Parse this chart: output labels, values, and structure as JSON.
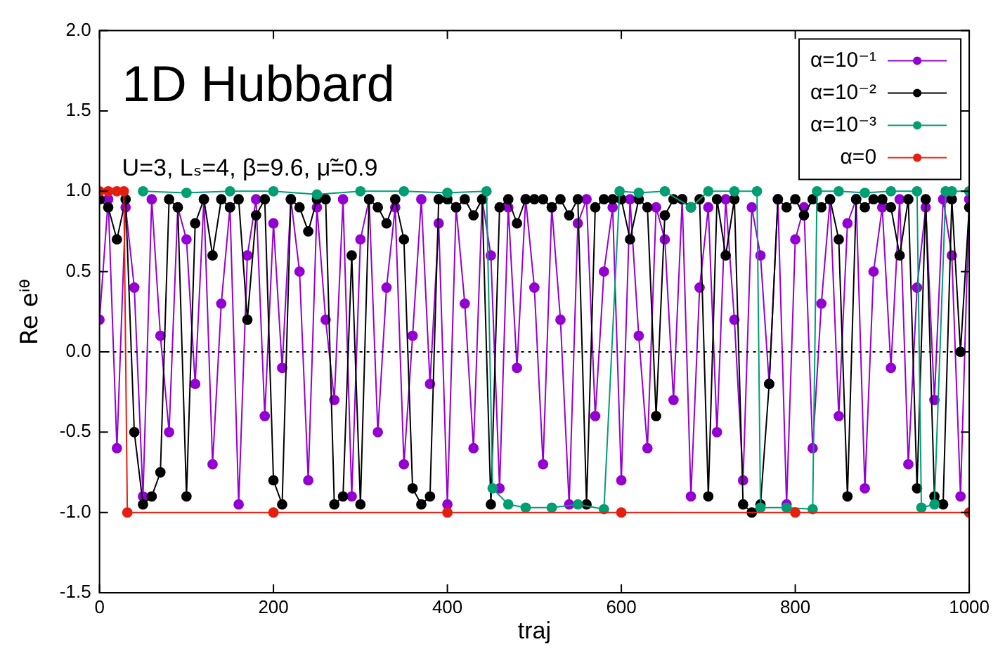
{
  "chart_data": {
    "type": "line",
    "title": "1D Hubbard",
    "subtitle": "U=3, Lₛ=4, β=9.6, μ̃=0.9",
    "xlabel": "traj",
    "ylabel": "Re eⁱᶿ",
    "x": [
      0,
      10,
      20,
      30,
      40,
      50,
      60,
      70,
      80,
      90,
      100,
      110,
      120,
      130,
      140,
      150,
      160,
      170,
      180,
      190,
      200,
      210,
      220,
      230,
      240,
      250,
      260,
      270,
      280,
      290,
      300,
      310,
      320,
      330,
      340,
      350,
      360,
      370,
      380,
      390,
      400,
      410,
      420,
      430,
      440,
      450,
      460,
      470,
      480,
      490,
      500,
      510,
      520,
      530,
      540,
      550,
      560,
      570,
      580,
      590,
      600,
      610,
      620,
      630,
      640,
      650,
      660,
      670,
      680,
      690,
      700,
      710,
      720,
      730,
      740,
      750,
      760,
      770,
      780,
      790,
      800,
      810,
      820,
      830,
      840,
      850,
      860,
      870,
      880,
      890,
      900,
      910,
      920,
      930,
      940,
      950,
      960,
      970,
      980,
      990,
      1000
    ],
    "series": [
      {
        "name": "α=10⁻¹",
        "color": "#9400d3",
        "values": [
          0.2,
          0.95,
          -0.6,
          0.9,
          0.4,
          -0.9,
          0.95,
          0.1,
          -0.5,
          0.9,
          0.7,
          -0.2,
          0.95,
          -0.7,
          0.3,
          0.9,
          -0.95,
          0.6,
          0.95,
          -0.4,
          0.8,
          -0.1,
          0.95,
          0.5,
          -0.8,
          0.9,
          0.2,
          -0.3,
          0.95,
          -0.9,
          0.7,
          0.95,
          -0.5,
          0.4,
          0.9,
          -0.7,
          0.1,
          0.95,
          -0.2,
          0.8,
          -0.95,
          0.9,
          0.3,
          -0.6,
          0.95,
          0.6,
          -0.85,
          0.9,
          -0.1,
          0.95,
          0.4,
          -0.7,
          0.9,
          0.2,
          -0.95,
          0.8,
          0.95,
          -0.4,
          0.5,
          0.9,
          -0.8,
          0.95,
          0.1,
          -0.6,
          0.9,
          0.7,
          -0.3,
          0.95,
          -0.9,
          0.4,
          0.9,
          -0.5,
          0.95,
          0.2,
          -0.8,
          0.9,
          0.6,
          -0.2,
          0.95,
          -0.95,
          0.7,
          0.9,
          -0.6,
          0.3,
          0.95,
          -0.4,
          0.8,
          0.95,
          -0.85,
          0.5,
          0.9,
          -0.1,
          0.95,
          -0.7,
          0.4,
          0.9,
          -0.3,
          0.95,
          0.6,
          -0.9,
          0.95
        ]
      },
      {
        "name": "α=10⁻²",
        "color": "#000000",
        "values": [
          0.95,
          0.9,
          0.7,
          0.95,
          -0.5,
          -0.95,
          -0.9,
          -0.75,
          0.95,
          0.9,
          -0.9,
          0.8,
          0.95,
          0.6,
          0.95,
          0.9,
          0.95,
          0.2,
          0.85,
          0.95,
          -0.8,
          -0.95,
          0.95,
          0.9,
          0.75,
          0.95,
          0.95,
          -0.95,
          -0.9,
          0.6,
          -0.95,
          0.95,
          0.9,
          0.8,
          0.95,
          0.7,
          -0.85,
          -0.95,
          -0.9,
          0.95,
          0.95,
          0.9,
          0.95,
          0.85,
          0.95,
          -0.95,
          0.9,
          0.95,
          0.8,
          0.95,
          0.95,
          0.95,
          0.9,
          0.95,
          0.85,
          0.95,
          -0.95,
          0.9,
          0.95,
          0.95,
          0.95,
          0.7,
          0.95,
          0.9,
          -0.4,
          0.85,
          0.95,
          0.95,
          0.9,
          0.95,
          -0.9,
          0.95,
          0.6,
          0.95,
          -0.95,
          -1,
          -0.95,
          -0.2,
          0.95,
          0.9,
          0.95,
          0.85,
          0.95,
          0.9,
          0.95,
          0.7,
          -0.9,
          0.95,
          0.9,
          0.95,
          0.95,
          0.9,
          0.6,
          0.95,
          -0.85,
          0.95,
          -0.9,
          -0.95,
          0.95,
          0.0,
          0.9
        ]
      },
      {
        "name": "α=10⁻³",
        "color": "#009e73",
        "x": [
          50,
          100,
          150,
          200,
          250,
          300,
          350,
          400,
          445,
          452,
          470,
          490,
          520,
          550,
          580,
          598,
          620,
          650,
          680,
          700,
          730,
          756,
          760,
          790,
          820,
          825,
          850,
          880,
          910,
          940,
          945,
          960,
          973,
          980,
          1000
        ],
        "values": [
          1,
          0.99,
          1,
          1,
          0.98,
          1,
          1,
          0.99,
          1,
          -0.85,
          -0.95,
          -0.97,
          -0.97,
          -0.95,
          -0.98,
          1,
          0.99,
          1,
          0.9,
          1,
          1,
          1,
          -0.97,
          -0.97,
          -0.98,
          1,
          1,
          0.99,
          1,
          1,
          -0.97,
          -0.95,
          1,
          1,
          1
        ]
      },
      {
        "name": "α=0",
        "color": "#e51e10",
        "x": [
          0,
          10,
          20,
          28,
          32,
          200,
          400,
          600,
          800,
          1000
        ],
        "values": [
          1,
          1,
          1,
          1,
          -1,
          -1,
          -1,
          -1,
          -1,
          -1
        ]
      }
    ],
    "xlim": [
      0,
      1000
    ],
    "xticks": [
      0,
      200,
      400,
      600,
      800,
      1000
    ],
    "ylim": [
      -1.5,
      2.0
    ],
    "yticks": [
      -1.5,
      {
        "value": -1,
        "label": "-1.0"
      },
      -0.5,
      {
        "value": 0,
        "label": "0.0"
      },
      0.5,
      {
        "value": 1,
        "label": "1.0"
      },
      1.5,
      {
        "value": 2,
        "label": "2.0"
      }
    ],
    "ref_lines": [
      {
        "axis": "y",
        "value": 0,
        "color": "#000000",
        "line_style": "dotted"
      }
    ],
    "grid": false,
    "legend": "top right",
    "marker": "circle",
    "line_style": "solid"
  }
}
